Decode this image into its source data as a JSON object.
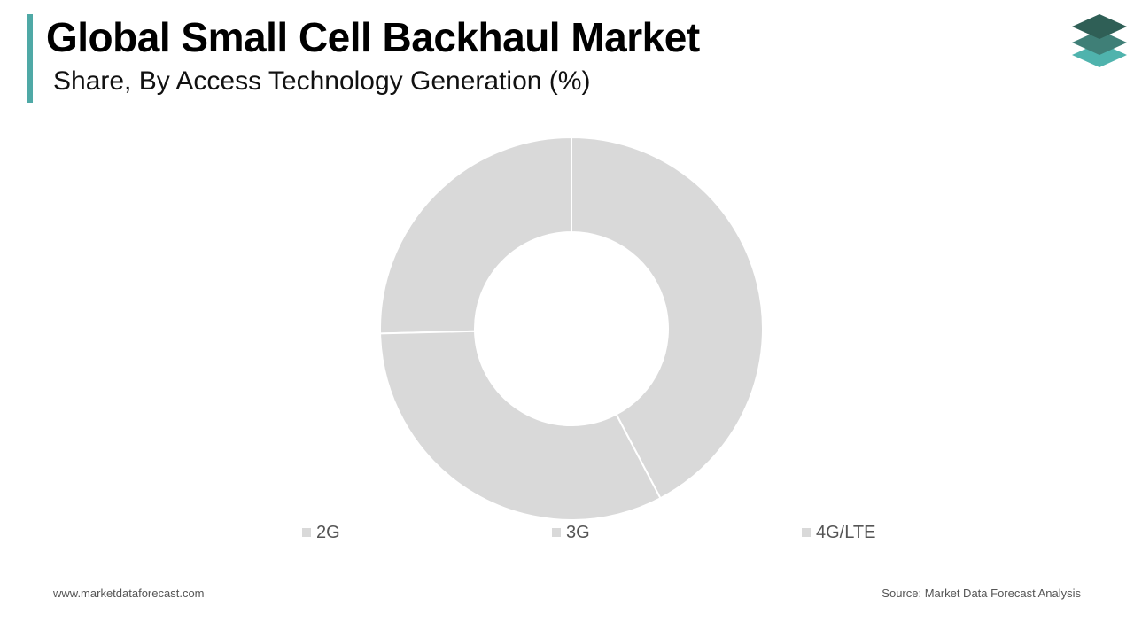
{
  "header": {
    "title": "Global Small Cell Backhaul Market",
    "subtitle": "Share, By Access Technology Generation (%)"
  },
  "logo": {
    "icon": "stacked-layers-logo-icon",
    "colors": [
      "#2f5f56",
      "#3f7f77",
      "#4fb3ad"
    ]
  },
  "chart_data": {
    "type": "pie",
    "variant": "donut",
    "categories": [
      "2G",
      "3G",
      "4G/LTE"
    ],
    "values": [
      25.4,
      32.3,
      42.3
    ],
    "unit": "%",
    "data_labels_shown": false,
    "legend_position": "bottom",
    "colors": [
      "#d9d9d9",
      "#d9d9d9",
      "#d9d9d9"
    ],
    "separator_color": "#ffffff"
  },
  "legend": {
    "items": [
      {
        "label": "2G",
        "color": "#d9d9d9"
      },
      {
        "label": "3G",
        "color": "#d9d9d9"
      },
      {
        "label": "4G/LTE",
        "color": "#d9d9d9"
      }
    ]
  },
  "footer": {
    "website": "www.marketdataforecast.com",
    "source": "Source: Market Data Forecast Analysis"
  },
  "colors": {
    "accent": "#4fa9a6",
    "text_primary": "#000000",
    "text_secondary": "#555555"
  }
}
